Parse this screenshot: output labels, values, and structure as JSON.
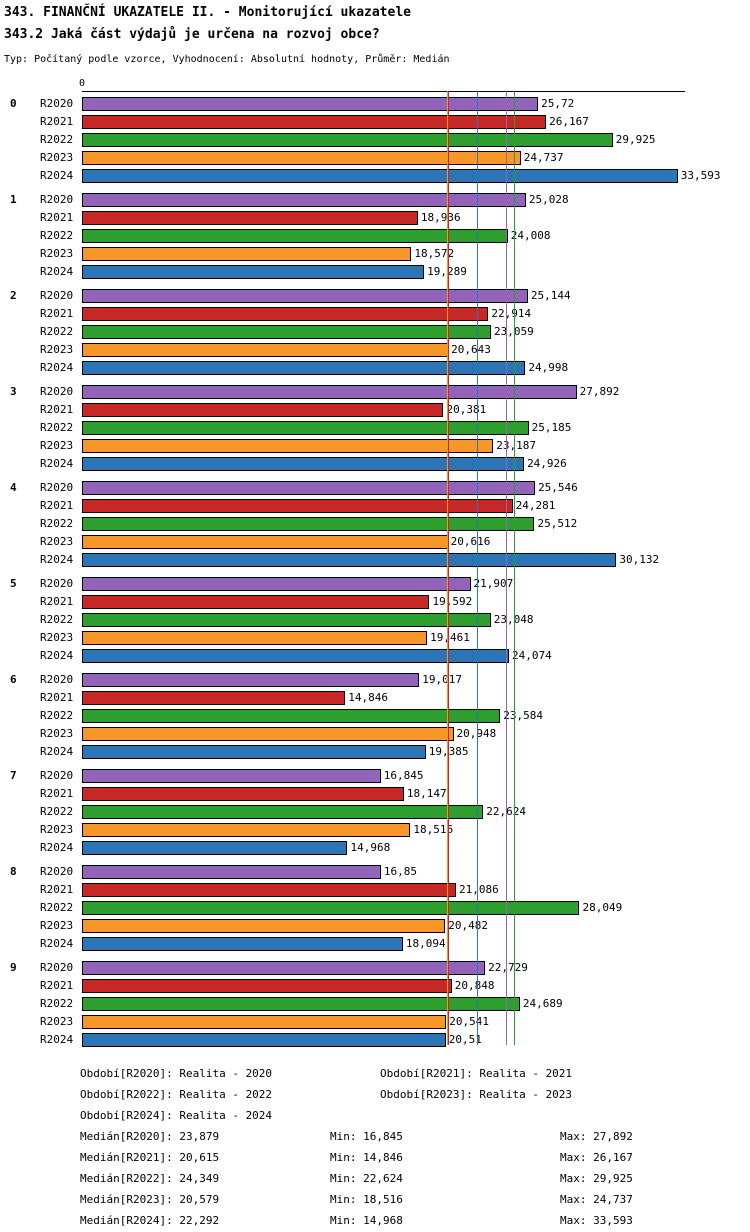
{
  "header": {
    "title1": "343. FINANČNÍ UKAZATELE II. - Monitorující ukazatele",
    "title2": "343.2 Jaká část výdajů je určena na rozvoj obce?",
    "meta": "Typ: Počítaný podle vzorce, Vyhodnocení: Absolutní hodnoty, Průměr: Medián"
  },
  "chart_data": {
    "type": "bar",
    "orientation": "horizontal",
    "title": "343.2 Jaká část výdajů je určena na rozvoj obce?",
    "axis_origin_label": "0",
    "axis_max": 34,
    "grid": false,
    "series": [
      {
        "name": "R2020",
        "color": "#9265BB",
        "period": "Realita - 2020",
        "median": 23.879,
        "median_label": "23,879"
      },
      {
        "name": "R2021",
        "color": "#C62828",
        "period": "Realita - 2021",
        "median": 20.615,
        "median_label": "20,615"
      },
      {
        "name": "R2022",
        "color": "#2E9E2E",
        "period": "Realita - 2022",
        "median": 24.349,
        "median_label": "24,349"
      },
      {
        "name": "R2023",
        "color": "#F89728",
        "period": "Realita - 2023",
        "median": 20.579,
        "median_label": "20,579"
      },
      {
        "name": "R2024",
        "color": "#2E75B6",
        "period": "Realita - 2024",
        "median": 22.292,
        "median_label": "22,292"
      }
    ],
    "groups": [
      {
        "label": "0",
        "values": [
          25.72,
          26.167,
          29.925,
          24.737,
          33.593
        ],
        "value_labels": [
          "25,72",
          "26,167",
          "29,925",
          "24,737",
          "33,593"
        ]
      },
      {
        "label": "1",
        "values": [
          25.028,
          18.936,
          24.008,
          18.572,
          19.289
        ],
        "value_labels": [
          "25,028",
          "18,936",
          "24,008",
          "18,572",
          "19,289"
        ]
      },
      {
        "label": "2",
        "values": [
          25.144,
          22.914,
          23.059,
          20.643,
          24.998
        ],
        "value_labels": [
          "25,144",
          "22,914",
          "23,059",
          "20,643",
          "24,998"
        ]
      },
      {
        "label": "3",
        "values": [
          27.892,
          20.381,
          25.185,
          23.187,
          24.926
        ],
        "value_labels": [
          "27,892",
          "20,381",
          "25,185",
          "23,187",
          "24,926"
        ]
      },
      {
        "label": "4",
        "values": [
          25.546,
          24.281,
          25.512,
          20.616,
          30.132
        ],
        "value_labels": [
          "25,546",
          "24,281",
          "25,512",
          "20,616",
          "30,132"
        ]
      },
      {
        "label": "5",
        "values": [
          21.907,
          19.592,
          23.048,
          19.461,
          24.074
        ],
        "value_labels": [
          "21,907",
          "19,592",
          "23,048",
          "19,461",
          "24,074"
        ]
      },
      {
        "label": "6",
        "values": [
          19.017,
          14.846,
          23.584,
          20.948,
          19.385
        ],
        "value_labels": [
          "19,017",
          "14,846",
          "23,584",
          "20,948",
          "19,385"
        ]
      },
      {
        "label": "7",
        "values": [
          16.845,
          18.147,
          22.624,
          18.516,
          14.968
        ],
        "value_labels": [
          "16,845",
          "18,147",
          "22,624",
          "18,516",
          "14,968"
        ]
      },
      {
        "label": "8",
        "values": [
          16.85,
          21.086,
          28.049,
          20.482,
          18.094
        ],
        "value_labels": [
          "16,85",
          "21,086",
          "28,049",
          "20,482",
          "18,094"
        ]
      },
      {
        "label": "9",
        "values": [
          22.729,
          20.848,
          24.689,
          20.541,
          20.51
        ],
        "value_labels": [
          "22,729",
          "20,848",
          "24,689",
          "20,541",
          "20,51"
        ]
      }
    ]
  },
  "footer": {
    "period_rows": [
      [
        "Období[R2020]: Realita - 2020",
        "Období[R2021]: Realita - 2021"
      ],
      [
        "Období[R2022]: Realita - 2022",
        "Období[R2023]: Realita - 2023"
      ],
      [
        "Období[R2024]: Realita - 2024",
        ""
      ]
    ],
    "stat_rows": [
      [
        "Medián[R2020]: 23,879",
        "Min: 16,845",
        "Max: 27,892"
      ],
      [
        "Medián[R2021]: 20,615",
        "Min: 14,846",
        "Max: 26,167"
      ],
      [
        "Medián[R2022]: 24,349",
        "Min: 22,624",
        "Max: 29,925"
      ],
      [
        "Medián[R2023]: 20,579",
        "Min: 18,516",
        "Max: 24,737"
      ],
      [
        "Medián[R2024]: 22,292",
        "Min: 14,968",
        "Max: 33,593"
      ]
    ]
  }
}
